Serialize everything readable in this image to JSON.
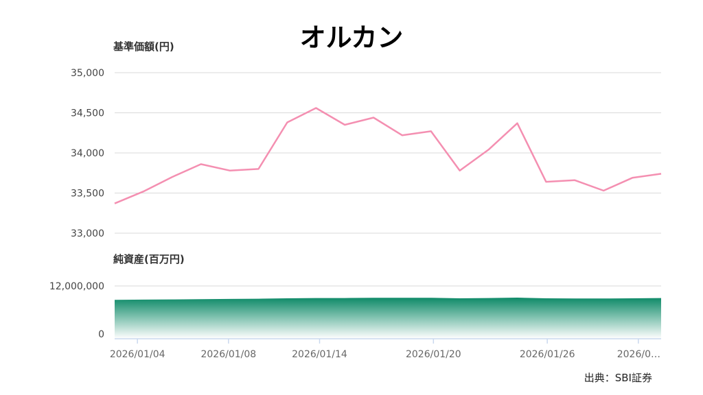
{
  "title": "オルカン",
  "source": "出典：SBI証券",
  "colors": {
    "price_line": "#f48fb1",
    "asset_area_top": "#0e8a68",
    "grid": "#d9d9d9",
    "axis": "#c9d8ee"
  },
  "chart_data": [
    {
      "type": "line",
      "ylabel": "基準価額(円)",
      "ylim": [
        33000,
        35000
      ],
      "ytick_labels": [
        "35,000",
        "34,500",
        "34,000",
        "33,500",
        "33,000"
      ],
      "ytick_values": [
        35000,
        34500,
        34000,
        33500,
        33000
      ],
      "grid": true,
      "series": [
        {
          "values": [
            33370,
            33520,
            33700,
            33860,
            33780,
            33800,
            34380,
            34560,
            34350,
            34440,
            34220,
            34270,
            33780,
            34040,
            34370,
            33640,
            33660,
            33530,
            33690,
            33740
          ]
        }
      ]
    },
    {
      "type": "area",
      "ylabel": "純資産(百万円)",
      "ylim": [
        0,
        12000000
      ],
      "ytick_labels": [
        "12,000,000",
        "0"
      ],
      "ytick_values": [
        12000000,
        0
      ],
      "grid": true,
      "series": [
        {
          "values": [
            8850000,
            8900000,
            8950000,
            9000000,
            9050000,
            9100000,
            9200000,
            9250000,
            9250000,
            9300000,
            9300000,
            9300000,
            9200000,
            9250000,
            9350000,
            9200000,
            9150000,
            9150000,
            9200000,
            9250000
          ]
        }
      ]
    }
  ],
  "x_axis": {
    "tick_labels": [
      "2026/01/04",
      "2026/01/08",
      "2026/01/14",
      "2026/01/20",
      "2026/01/26",
      "2026/0…"
    ],
    "tick_indices": [
      1,
      5,
      9,
      14,
      19,
      23
    ]
  }
}
